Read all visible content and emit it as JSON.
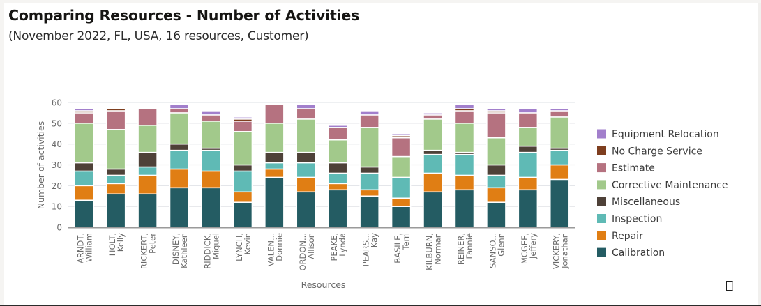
{
  "header": {
    "title": "Comparing Resources - Number of Activities",
    "subtitle": "(November 2022, FL, USA, 16 resources, Customer)"
  },
  "icons": {
    "maximize": "maximize-icon"
  },
  "chart_data": {
    "type": "bar",
    "stacked": true,
    "title": "Comparing Resources - Number of Activities",
    "subtitle": "(November 2022, FL, USA, 16 resources, Customer)",
    "xlabel": "Resources",
    "ylabel": "Number of activities",
    "ylim": [
      0,
      60
    ],
    "yticks": [
      0,
      10,
      20,
      30,
      40,
      50,
      60
    ],
    "grid": true,
    "legend_position": "right",
    "categories": [
      [
        "ARNDT,",
        "William"
      ],
      [
        "HOLT,",
        "Kelly"
      ],
      [
        "RICKERT,",
        "Peter"
      ],
      [
        "DISNEY,",
        "Kathleen"
      ],
      [
        "RIDDICK,",
        "Miguel"
      ],
      [
        "LYNCH,",
        "Kevin"
      ],
      [
        "VALEN...",
        "Donnie"
      ],
      [
        "ORDON...",
        "Allison"
      ],
      [
        "PEAKE,",
        "Lynda"
      ],
      [
        "PEARS...",
        "Kay"
      ],
      [
        "BASILE,",
        "Terri"
      ],
      [
        "KILBURN,",
        "Norman"
      ],
      [
        "REINER,",
        "Fannie"
      ],
      [
        "SANSO...",
        "Glenn"
      ],
      [
        "MCGEE,",
        "Jeffery"
      ],
      [
        "VICKERY,",
        "Jonathan"
      ]
    ],
    "series": [
      {
        "name": "Calibration",
        "color": "#245c63",
        "values": [
          13,
          16,
          16,
          19,
          19,
          12,
          24,
          17,
          18,
          15,
          10,
          17,
          18,
          12,
          18,
          23
        ]
      },
      {
        "name": "Repair",
        "color": "#e07e14",
        "values": [
          7,
          5,
          9,
          9,
          8,
          5,
          4,
          7,
          3,
          3,
          4,
          9,
          7,
          7,
          6,
          7
        ]
      },
      {
        "name": "Inspection",
        "color": "#5fbab5",
        "values": [
          7,
          4,
          4,
          9,
          10,
          10,
          3,
          7,
          5,
          8,
          10,
          9,
          10,
          6,
          12,
          7
        ]
      },
      {
        "name": "Miscellaneous",
        "color": "#4e4138",
        "values": [
          4,
          3,
          7,
          3,
          1,
          3,
          5,
          5,
          5,
          3,
          0,
          2,
          1,
          5,
          3,
          1
        ]
      },
      {
        "name": "Corrective Maintenance",
        "color": "#a2c98b",
        "values": [
          19,
          19,
          13,
          15,
          13,
          16,
          14,
          16,
          11,
          19,
          10,
          15,
          14,
          13,
          9,
          15
        ]
      },
      {
        "name": "Estimate",
        "color": "#b57280",
        "values": [
          5,
          9,
          8,
          2,
          3,
          5,
          9,
          5,
          6,
          6,
          9,
          2,
          6,
          12,
          7,
          3
        ]
      },
      {
        "name": "No Charge Service",
        "color": "#7e3e1f",
        "values": [
          1,
          1,
          0,
          0,
          0,
          1,
          0,
          0,
          0,
          0,
          1,
          0,
          1,
          1,
          0,
          0
        ]
      },
      {
        "name": "Equipment Relocation",
        "color": "#a27fcc",
        "values": [
          1,
          0,
          0,
          2,
          2,
          1,
          0,
          2,
          1,
          2,
          1,
          1,
          2,
          1,
          2,
          1
        ]
      }
    ],
    "legend_order": [
      "Equipment Relocation",
      "No Charge Service",
      "Estimate",
      "Corrective Maintenance",
      "Miscellaneous",
      "Inspection",
      "Repair",
      "Calibration"
    ]
  }
}
